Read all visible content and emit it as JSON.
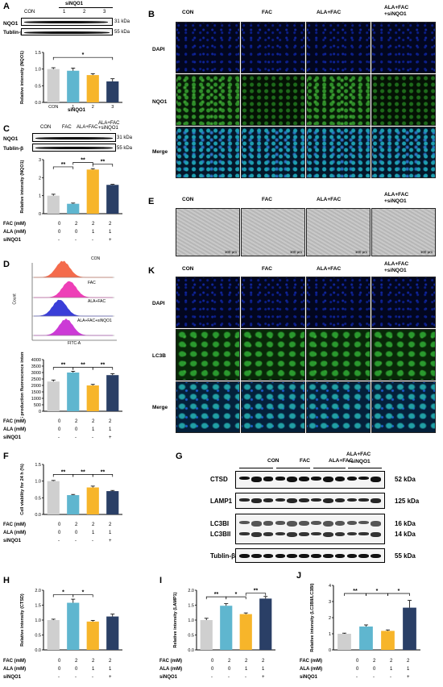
{
  "panel_labels": {
    "a": "A",
    "b": "B",
    "c": "C",
    "d": "D",
    "e": "E",
    "f": "F",
    "g": "G",
    "h": "H",
    "i": "I",
    "j": "J",
    "k": "K"
  },
  "groups": {
    "con": "CON",
    "fac": "FAC",
    "alafac": "ALA+FAC",
    "alafacsi_1": "ALA+FAC",
    "alafacsi_2": "+siNQO1"
  },
  "blot_labels": {
    "nqo1": "NQO1",
    "tublin": "Tublin-β",
    "sinqo1": "siNQO1",
    "kda31": "31 kDa",
    "kda55": "55 kDa",
    "ctsd": "CTSD",
    "lamp1": "LAMP1",
    "lc3bi": "LC3BI",
    "lc3bii": "LC3BII",
    "kda52": "52 kDa",
    "kda125": "125 kDa",
    "kda16": "16 kDa",
    "kda14": "14 kDa",
    "ala_fac_top": "ALA+FAC",
    "sinqo1_top": "+siNQO1"
  },
  "a_groups": [
    "CON",
    "1",
    "2",
    "3"
  ],
  "row_labels": {
    "dapi": "DAPI",
    "nqo1": "NQO1",
    "merge": "Merge",
    "lc3b": "LC3B"
  },
  "scale_bar": "100 μm",
  "treatment": {
    "fac": "FAC (mM)",
    "ala": "ALA (mM)",
    "si": "siNQO1",
    "fac_vals": [
      "0",
      "2",
      "2",
      "2"
    ],
    "ala_vals": [
      "0",
      "0",
      "1",
      "1"
    ],
    "si_vals": [
      "-",
      "-",
      "-",
      "+"
    ]
  },
  "flow": {
    "xlabel": "FITC-A",
    "ylabel": "Count",
    "labels": [
      "CON",
      "FAC",
      "ALA+FAC",
      "ALA+FAC+siNQO1"
    ]
  },
  "sig": {
    "one": "*",
    "two": "**"
  },
  "colors": {
    "con": "#cfcfcf",
    "fac": "#5fb6cf",
    "ala": "#f7b52a",
    "si": "#2a3f66"
  },
  "chart_data": [
    {
      "id": "A",
      "type": "bar",
      "categories": [
        "CON",
        "1",
        "2",
        "3"
      ],
      "values": [
        1.0,
        0.95,
        0.82,
        0.63
      ],
      "errors": [
        0.04,
        0.08,
        0.04,
        0.08
      ],
      "ylabel": "Relative intensity (NQO1)",
      "ylim": [
        0,
        1.5
      ],
      "yticks": [
        "0.0",
        "0.5",
        "1.0",
        "1.5"
      ],
      "xgroup": "siNQO1"
    },
    {
      "id": "C",
      "type": "bar",
      "values": [
        1.0,
        0.55,
        2.45,
        1.6
      ],
      "errors": [
        0.08,
        0.04,
        0.05,
        0.03
      ],
      "ylabel": "Relative intensity (NQO1)",
      "ylim": [
        0,
        3
      ],
      "yticks": [
        "0",
        "1",
        "2",
        "3"
      ]
    },
    {
      "id": "D",
      "type": "bar",
      "values": [
        2300,
        3000,
        2000,
        2800
      ],
      "errors": [
        120,
        100,
        80,
        110
      ],
      "ylabel": "ROS production fluorescence intensity",
      "ylim": [
        0,
        4000
      ],
      "yticks": [
        "0",
        "500",
        "1000",
        "1500",
        "2000",
        "2500",
        "3000",
        "3500",
        "4000"
      ]
    },
    {
      "id": "F",
      "type": "bar",
      "values": [
        1.0,
        0.58,
        0.81,
        0.7
      ],
      "errors": [
        0.02,
        0.02,
        0.04,
        0.02
      ],
      "ylabel": "Cell viability for 24 h (%)",
      "ylim": [
        0,
        1.5
      ],
      "yticks": [
        "0.0",
        "0.5",
        "1.0",
        "1.5"
      ]
    },
    {
      "id": "H",
      "type": "bar",
      "values": [
        1.0,
        1.58,
        0.95,
        1.12
      ],
      "errors": [
        0.03,
        0.12,
        0.04,
        0.08
      ],
      "ylabel": "Relative intensity (CTSD)",
      "ylim": [
        0,
        2.0
      ],
      "yticks": [
        "0.0",
        "0.5",
        "1.0",
        "1.5",
        "2.0"
      ]
    },
    {
      "id": "I",
      "type": "bar",
      "values": [
        1.0,
        1.48,
        1.2,
        1.72
      ],
      "errors": [
        0.06,
        0.07,
        0.04,
        0.07
      ],
      "ylabel": "Relative intensity (LAMP1)",
      "ylim": [
        0,
        2.0
      ],
      "yticks": [
        "0.0",
        "0.5",
        "1.0",
        "1.5",
        "2.0"
      ]
    },
    {
      "id": "J",
      "type": "bar",
      "values": [
        1.0,
        1.45,
        1.18,
        2.62
      ],
      "errors": [
        0.04,
        0.1,
        0.06,
        0.45
      ],
      "ylabel": "Relative intensity (LC3BII/LC3BI)",
      "ylim": [
        0,
        4
      ],
      "yticks": [
        "0",
        "1",
        "2",
        "3",
        "4"
      ]
    }
  ]
}
